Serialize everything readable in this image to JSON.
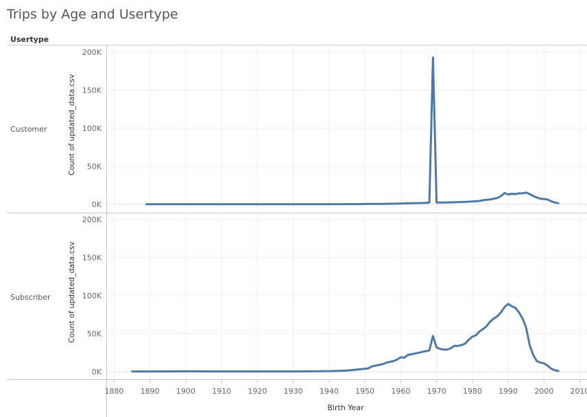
{
  "title": "Trips by Age and Usertype",
  "chart_data": {
    "type": "line",
    "title": "Trips by Age and Usertype",
    "row_header": "Usertype",
    "xlabel": "Birth Year",
    "ylabel": "Count of updated_data.csv",
    "xlim": [
      1878,
      2012
    ],
    "ylim": [
      0,
      200000
    ],
    "x_ticks": [
      1880,
      1890,
      1900,
      1910,
      1920,
      1930,
      1940,
      1950,
      1960,
      1970,
      1980,
      1990,
      2000,
      2010
    ],
    "y_ticks": [
      0,
      50000,
      100000,
      150000,
      200000
    ],
    "y_tick_labels": [
      "0K",
      "50K",
      "100K",
      "150K",
      "200K"
    ],
    "grid": true,
    "line_color": "#4e79a7",
    "panels": [
      {
        "name": "Customer",
        "points": [
          [
            1889,
            300
          ],
          [
            1900,
            300
          ],
          [
            1920,
            300
          ],
          [
            1940,
            300
          ],
          [
            1948,
            400
          ],
          [
            1950,
            500
          ],
          [
            1955,
            700
          ],
          [
            1958,
            900
          ],
          [
            1960,
            1200
          ],
          [
            1963,
            1500
          ],
          [
            1966,
            1800
          ],
          [
            1967,
            2000
          ],
          [
            1968,
            2500
          ],
          [
            1969,
            193000
          ],
          [
            1970,
            2500
          ],
          [
            1972,
            2400
          ],
          [
            1975,
            2800
          ],
          [
            1978,
            3200
          ],
          [
            1980,
            3800
          ],
          [
            1982,
            4500
          ],
          [
            1983,
            5500
          ],
          [
            1985,
            6500
          ],
          [
            1987,
            8500
          ],
          [
            1988,
            11000
          ],
          [
            1989,
            15000
          ],
          [
            1990,
            13000
          ],
          [
            1991,
            14000
          ],
          [
            1992,
            13500
          ],
          [
            1993,
            14500
          ],
          [
            1994,
            14500
          ],
          [
            1995,
            15500
          ],
          [
            1996,
            13500
          ],
          [
            1997,
            11000
          ],
          [
            1998,
            9000
          ],
          [
            1999,
            7500
          ],
          [
            2000,
            7000
          ],
          [
            2001,
            6500
          ],
          [
            2002,
            4000
          ],
          [
            2003,
            2500
          ],
          [
            2004,
            1500
          ]
        ]
      },
      {
        "name": "Subscriber",
        "points": [
          [
            1885,
            400
          ],
          [
            1890,
            400
          ],
          [
            1900,
            500
          ],
          [
            1910,
            400
          ],
          [
            1920,
            400
          ],
          [
            1930,
            400
          ],
          [
            1935,
            500
          ],
          [
            1938,
            600
          ],
          [
            1940,
            800
          ],
          [
            1943,
            1200
          ],
          [
            1945,
            1500
          ],
          [
            1947,
            2500
          ],
          [
            1948,
            3000
          ],
          [
            1950,
            4000
          ],
          [
            1951,
            4500
          ],
          [
            1952,
            7000
          ],
          [
            1953,
            8000
          ],
          [
            1955,
            10000
          ],
          [
            1956,
            12000
          ],
          [
            1957,
            13000
          ],
          [
            1958,
            14000
          ],
          [
            1959,
            16000
          ],
          [
            1960,
            19000
          ],
          [
            1961,
            18500
          ],
          [
            1962,
            22000
          ],
          [
            1963,
            23000
          ],
          [
            1964,
            24000
          ],
          [
            1965,
            25000
          ],
          [
            1966,
            26000
          ],
          [
            1967,
            27000
          ],
          [
            1968,
            28000
          ],
          [
            1969,
            47000
          ],
          [
            1970,
            32000
          ],
          [
            1971,
            30000
          ],
          [
            1972,
            29000
          ],
          [
            1973,
            29000
          ],
          [
            1974,
            31000
          ],
          [
            1975,
            34000
          ],
          [
            1976,
            34000
          ],
          [
            1977,
            35000
          ],
          [
            1978,
            37000
          ],
          [
            1979,
            42000
          ],
          [
            1980,
            46000
          ],
          [
            1981,
            48000
          ],
          [
            1982,
            53000
          ],
          [
            1983,
            56000
          ],
          [
            1984,
            60000
          ],
          [
            1985,
            66000
          ],
          [
            1986,
            70000
          ],
          [
            1987,
            73000
          ],
          [
            1988,
            78000
          ],
          [
            1989,
            85000
          ],
          [
            1990,
            89000
          ],
          [
            1991,
            86000
          ],
          [
            1992,
            84000
          ],
          [
            1993,
            78000
          ],
          [
            1994,
            70000
          ],
          [
            1995,
            58000
          ],
          [
            1996,
            35000
          ],
          [
            1997,
            22000
          ],
          [
            1998,
            14000
          ],
          [
            1999,
            12000
          ],
          [
            2000,
            11000
          ],
          [
            2001,
            8000
          ],
          [
            2002,
            4000
          ],
          [
            2003,
            2000
          ],
          [
            2004,
            1000
          ]
        ]
      }
    ]
  }
}
